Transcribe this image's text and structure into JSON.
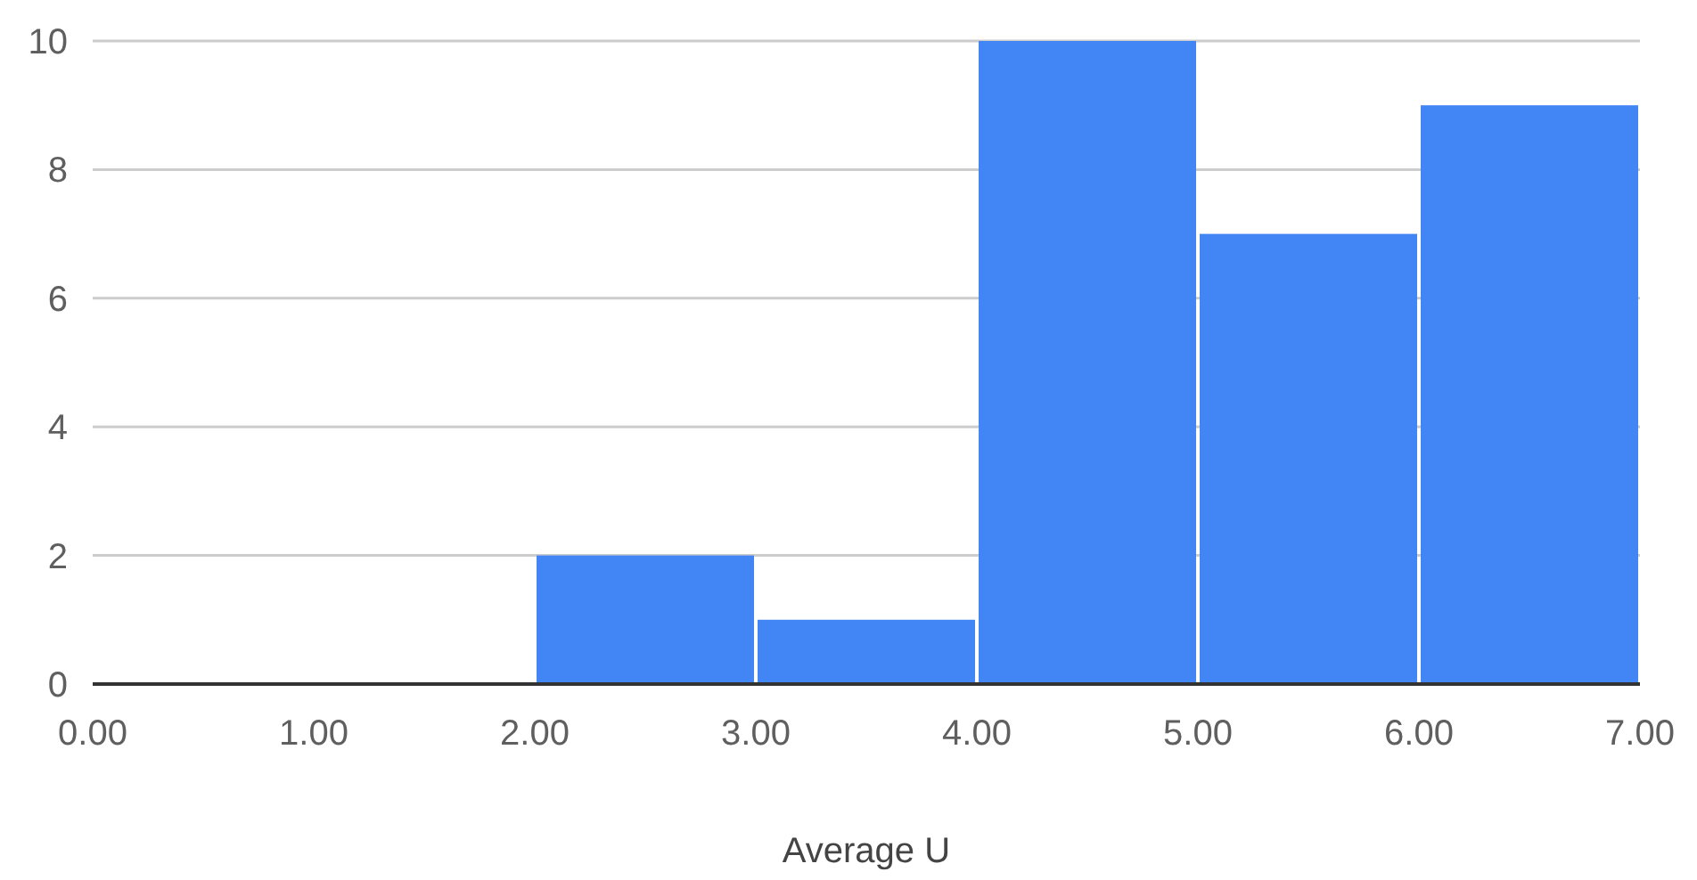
{
  "chart_data": {
    "type": "histogram",
    "xlabel": "Average U",
    "bins": [
      0,
      1,
      2,
      3,
      4,
      5,
      6,
      7
    ],
    "values": [
      0,
      0,
      2,
      1,
      10,
      7,
      9
    ],
    "color": "#4285f4",
    "xlim": [
      0,
      7
    ],
    "xticks": [
      {
        "value": 0,
        "label": "0.00"
      },
      {
        "value": 1,
        "label": "1.00"
      },
      {
        "value": 2,
        "label": "2.00"
      },
      {
        "value": 3,
        "label": "3.00"
      },
      {
        "value": 4,
        "label": "4.00"
      },
      {
        "value": 5,
        "label": "5.00"
      },
      {
        "value": 6,
        "label": "6.00"
      },
      {
        "value": 7,
        "label": "7.00"
      }
    ],
    "ylim": [
      0,
      10
    ],
    "yticks": [
      0,
      2,
      4,
      6,
      8,
      10
    ],
    "grid": "y"
  }
}
